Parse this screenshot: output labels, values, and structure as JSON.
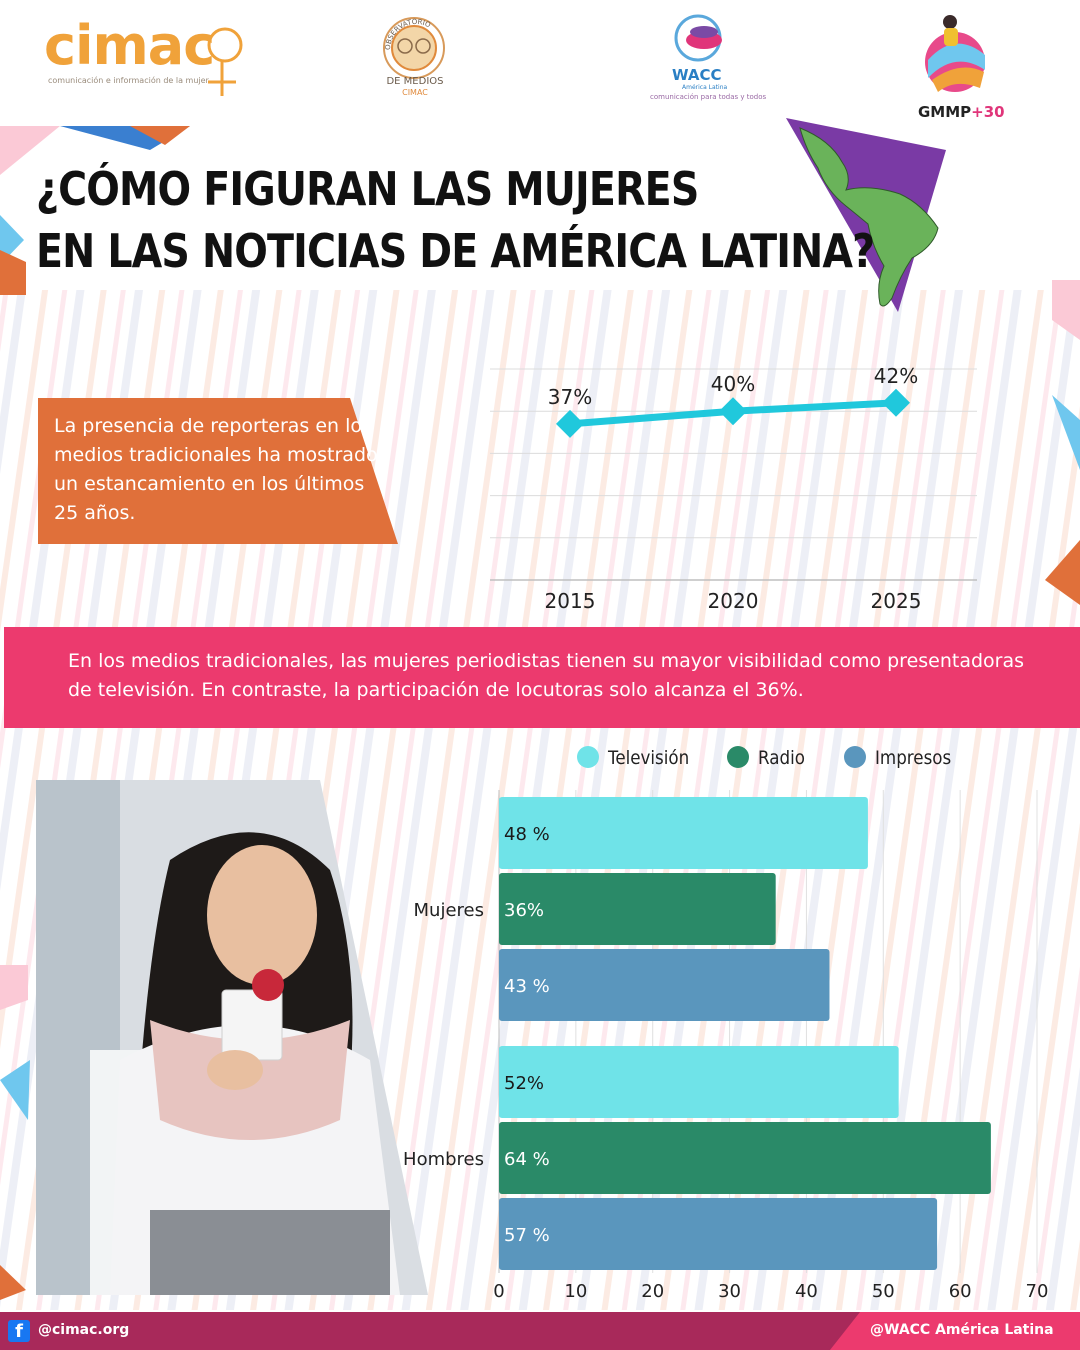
{
  "colors": {
    "orange": "#e0703a",
    "pink": "#ec3a6e",
    "footer": "#a8295a",
    "cyan": "#20c8dc",
    "tv": "#6fe3e8",
    "radio": "#2a8a68",
    "impresos": "#5a96bd"
  },
  "header": {
    "cimac_logo": "cimac",
    "cimac_subtitle": "comunicación e información de la mujer",
    "observatorio_arc": "OBSERVATORIO",
    "observatorio_line1": "DE MEDIOS",
    "observatorio_line2": "CIMAC",
    "wacc_logo": "WACC",
    "wacc_region": "América Latina",
    "wacc_tagline": "comunicación para todas y todos",
    "gmmp_logo": "GMMP",
    "gmmp_suffix": "+30"
  },
  "title": {
    "line1": "¿CÓMO FIGURAN LAS MUJERES",
    "line2": "EN LAS NOTICIAS DE AMÉRICA LATINA?"
  },
  "callout_text": "La presencia de reporteras en los medios tradicionales ha mostrado un estancamiento en los últimos 25 años.",
  "band_text": "En los medios tradicionales, las mujeres periodistas tienen su mayor visibilidad como presentadoras de televisión. En contraste, la participación de locutoras solo alcanza el 36%.",
  "footer": {
    "left": "@cimac.org",
    "right": "@WACC América Latina"
  },
  "chart_data": [
    {
      "type": "line",
      "x": [
        "2015",
        "2020",
        "2025"
      ],
      "values": [
        37,
        40,
        42
      ],
      "data_labels": [
        "37%",
        "40%",
        "42%"
      ],
      "grid": true,
      "ylim": [
        0,
        50
      ]
    },
    {
      "type": "bar",
      "orientation": "horizontal",
      "categories": [
        "Mujeres",
        "Hombres"
      ],
      "series": [
        {
          "name": "Televisión",
          "values": [
            48,
            52
          ],
          "labels": [
            "48 %",
            "52%"
          ]
        },
        {
          "name": "Radio",
          "values": [
            36,
            64
          ],
          "labels": [
            "36%",
            "64 %"
          ]
        },
        {
          "name": "Impresos",
          "values": [
            43,
            57
          ],
          "labels": [
            "43 %",
            "57 %"
          ]
        }
      ],
      "xlim": [
        0,
        70
      ],
      "xticks": [
        "0",
        "10",
        "20",
        "30",
        "40",
        "50",
        "60",
        "70"
      ],
      "legend": "top",
      "grid": true
    }
  ]
}
